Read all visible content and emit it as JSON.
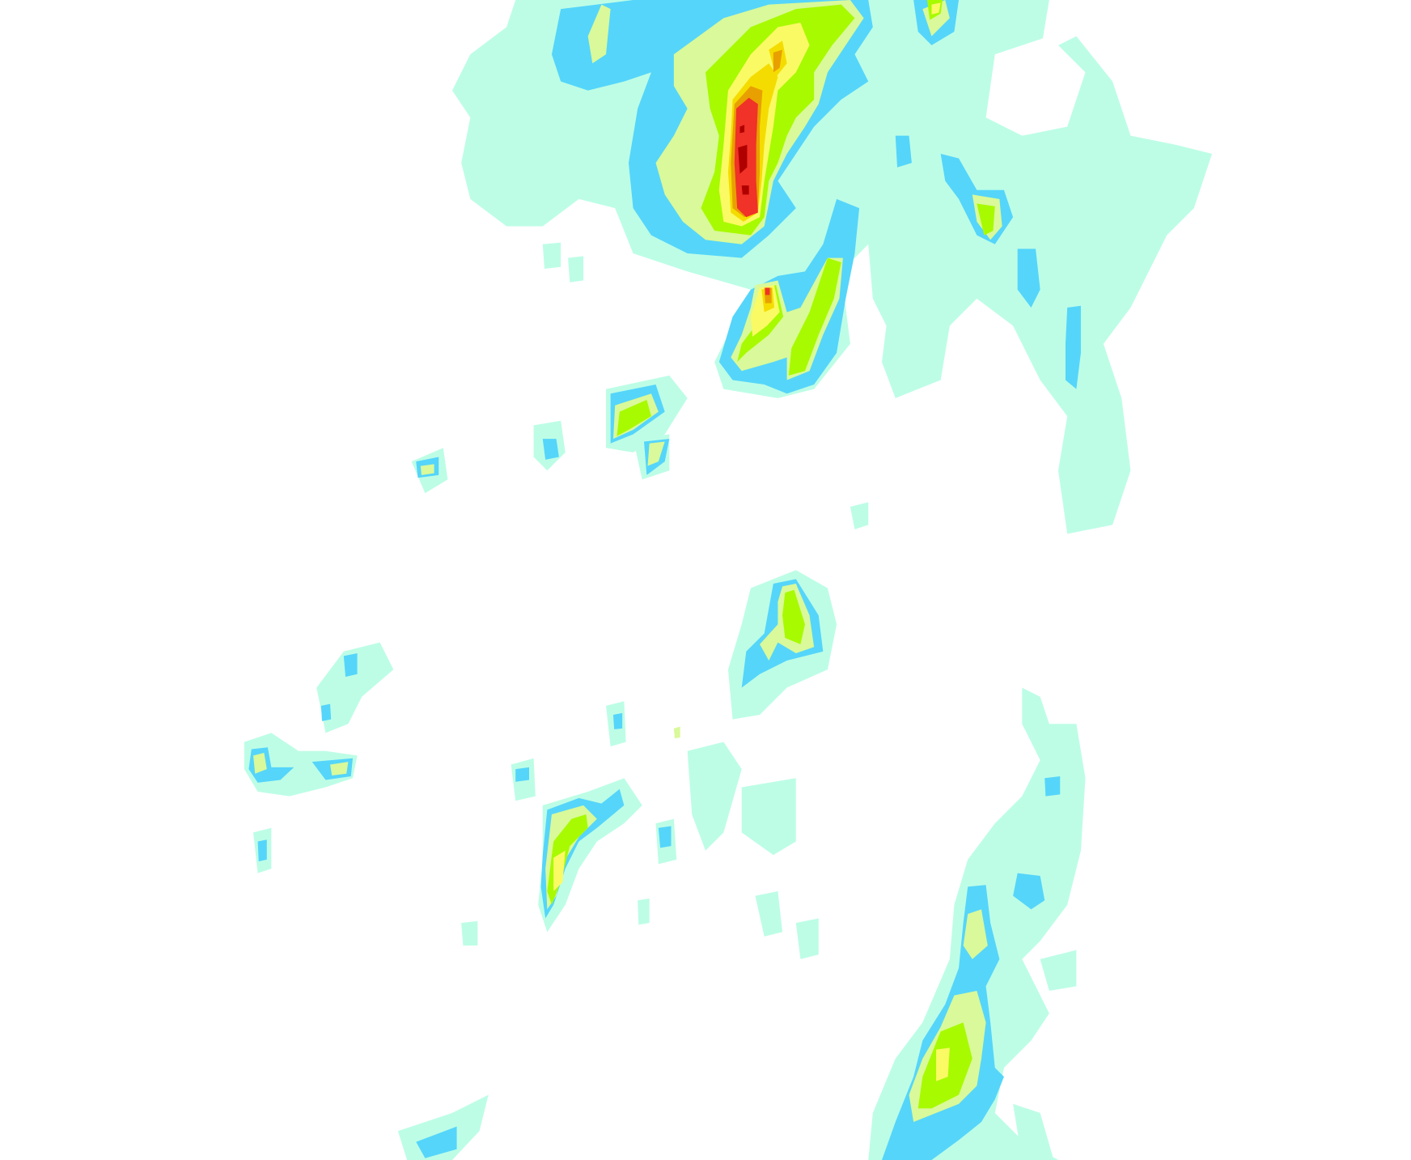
{
  "map": {
    "layer": "precipitation-radar",
    "colors": {
      "level1": "#bdfde6",
      "level2": "#55d5fa",
      "level3": "#d9f99a",
      "level4": "#a8fa00",
      "level5": "#fafa64",
      "level6": "#f5dc00",
      "level7": "#e8a000",
      "level8": "#f03228",
      "level9": "#b00000"
    }
  }
}
